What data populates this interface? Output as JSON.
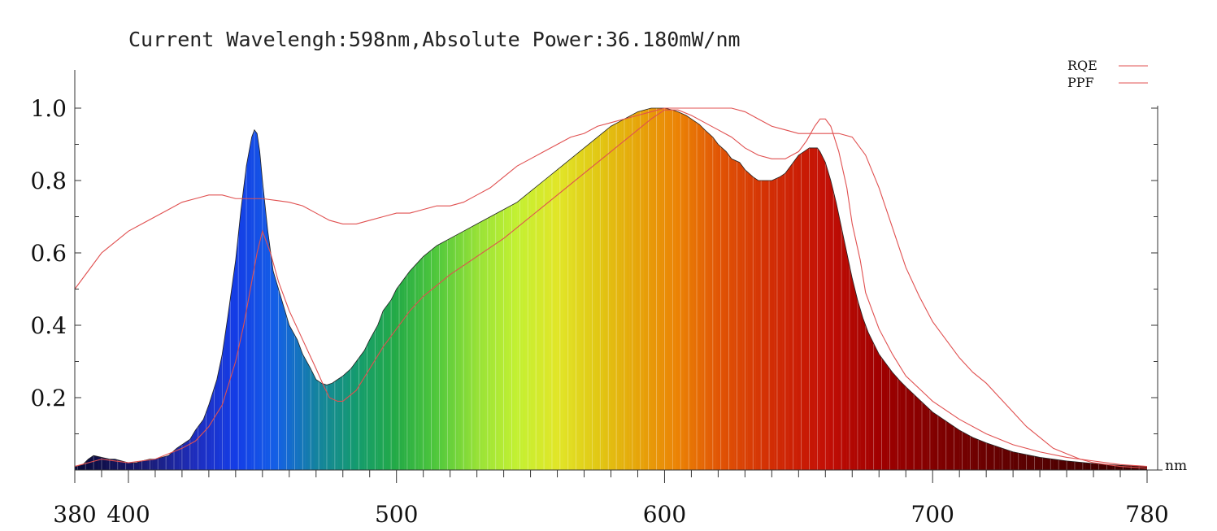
{
  "chart_data": {
    "type": "area",
    "title": "Current Wavelengh:598nm,Absolute Power:36.180mW/nm",
    "x_unit": "nm",
    "xlim": [
      380,
      780
    ],
    "ylim": [
      0,
      1.1
    ],
    "x_ticks": [
      380,
      400,
      500,
      600,
      700,
      780
    ],
    "y_ticks": [
      0.2,
      0.4,
      0.6,
      0.8,
      1.0
    ],
    "y_tick_labels": [
      "0.2",
      "0.4",
      "0.6",
      "0.8",
      "1.0"
    ],
    "grid": false,
    "legend_position": "top-right",
    "series": [
      {
        "name": "Spectrum",
        "style": "filled-spectrum",
        "x": [
          380,
          383,
          385,
          387,
          390,
          393,
          395,
          400,
          403,
          405,
          408,
          410,
          415,
          418,
          420,
          423,
          425,
          428,
          430,
          433,
          435,
          437,
          440,
          442,
          444,
          446,
          447,
          448,
          449,
          450,
          452,
          454,
          456,
          458,
          460,
          463,
          465,
          468,
          470,
          472,
          474,
          476,
          478,
          480,
          483,
          485,
          488,
          490,
          493,
          495,
          498,
          500,
          505,
          510,
          515,
          520,
          525,
          530,
          535,
          540,
          545,
          550,
          555,
          560,
          565,
          570,
          575,
          580,
          585,
          590,
          595,
          598,
          600,
          603,
          605,
          608,
          610,
          613,
          615,
          618,
          620,
          623,
          625,
          628,
          630,
          633,
          635,
          638,
          640,
          643,
          645,
          648,
          650,
          652,
          654,
          656,
          657,
          658,
          660,
          662,
          664,
          666,
          668,
          670,
          672,
          674,
          676,
          678,
          680,
          683,
          685,
          688,
          690,
          695,
          700,
          705,
          710,
          715,
          720,
          730,
          740,
          750,
          760,
          770,
          780
        ],
        "values": [
          0.01,
          0.015,
          0.03,
          0.04,
          0.035,
          0.03,
          0.03,
          0.02,
          0.02,
          0.025,
          0.03,
          0.03,
          0.04,
          0.06,
          0.07,
          0.085,
          0.11,
          0.14,
          0.18,
          0.25,
          0.32,
          0.42,
          0.58,
          0.72,
          0.84,
          0.92,
          0.94,
          0.93,
          0.88,
          0.8,
          0.66,
          0.55,
          0.5,
          0.45,
          0.4,
          0.36,
          0.32,
          0.28,
          0.25,
          0.24,
          0.235,
          0.24,
          0.25,
          0.26,
          0.28,
          0.3,
          0.33,
          0.36,
          0.4,
          0.44,
          0.47,
          0.5,
          0.55,
          0.59,
          0.62,
          0.64,
          0.66,
          0.68,
          0.7,
          0.72,
          0.74,
          0.77,
          0.8,
          0.83,
          0.86,
          0.89,
          0.92,
          0.95,
          0.97,
          0.99,
          1.0,
          1.0,
          1.0,
          0.995,
          0.99,
          0.98,
          0.97,
          0.955,
          0.94,
          0.92,
          0.9,
          0.88,
          0.86,
          0.85,
          0.83,
          0.81,
          0.8,
          0.8,
          0.8,
          0.81,
          0.82,
          0.85,
          0.87,
          0.88,
          0.89,
          0.89,
          0.89,
          0.88,
          0.85,
          0.8,
          0.74,
          0.67,
          0.6,
          0.53,
          0.47,
          0.42,
          0.38,
          0.35,
          0.32,
          0.29,
          0.27,
          0.245,
          0.23,
          0.195,
          0.16,
          0.135,
          0.11,
          0.09,
          0.075,
          0.05,
          0.035,
          0.025,
          0.018,
          0.013,
          0.01
        ]
      },
      {
        "name": "RQE",
        "style": "line",
        "color": "#e05050",
        "x": [
          380,
          385,
          390,
          395,
          400,
          405,
          410,
          415,
          420,
          425,
          430,
          435,
          440,
          445,
          450,
          455,
          460,
          465,
          470,
          475,
          480,
          485,
          490,
          495,
          500,
          505,
          510,
          515,
          520,
          525,
          530,
          535,
          540,
          545,
          550,
          555,
          560,
          565,
          570,
          575,
          580,
          585,
          590,
          595,
          600,
          605,
          610,
          615,
          620,
          625,
          630,
          635,
          640,
          645,
          650,
          655,
          660,
          665,
          670,
          675,
          680,
          685,
          690,
          695,
          700,
          705,
          710,
          715,
          720,
          725,
          730,
          735,
          740,
          745,
          750,
          755,
          760,
          770,
          780
        ],
        "values": [
          0.5,
          0.55,
          0.6,
          0.63,
          0.66,
          0.68,
          0.7,
          0.72,
          0.74,
          0.75,
          0.76,
          0.76,
          0.75,
          0.75,
          0.75,
          0.745,
          0.74,
          0.73,
          0.71,
          0.69,
          0.68,
          0.68,
          0.69,
          0.7,
          0.71,
          0.71,
          0.72,
          0.73,
          0.73,
          0.74,
          0.76,
          0.78,
          0.81,
          0.84,
          0.86,
          0.88,
          0.9,
          0.92,
          0.93,
          0.95,
          0.96,
          0.97,
          0.98,
          0.99,
          1.0,
          1.0,
          1.0,
          1.0,
          1.0,
          1.0,
          0.99,
          0.97,
          0.95,
          0.94,
          0.93,
          0.93,
          0.93,
          0.93,
          0.92,
          0.87,
          0.78,
          0.67,
          0.56,
          0.48,
          0.41,
          0.36,
          0.31,
          0.27,
          0.24,
          0.2,
          0.16,
          0.12,
          0.09,
          0.06,
          0.045,
          0.03,
          0.02,
          0.01,
          0.005
        ]
      },
      {
        "name": "PPF",
        "style": "line",
        "color": "#e05050",
        "x": [
          380,
          390,
          400,
          410,
          420,
          425,
          430,
          435,
          440,
          443,
          446,
          448,
          450,
          453,
          456,
          460,
          465,
          470,
          473,
          475,
          478,
          480,
          485,
          490,
          495,
          500,
          505,
          510,
          520,
          530,
          540,
          550,
          560,
          570,
          580,
          590,
          595,
          600,
          605,
          610,
          615,
          620,
          625,
          630,
          635,
          640,
          645,
          650,
          653,
          656,
          658,
          660,
          662,
          665,
          668,
          670,
          673,
          675,
          680,
          685,
          690,
          700,
          710,
          720,
          730,
          740,
          750,
          760,
          770,
          780
        ],
        "values": [
          0.01,
          0.03,
          0.02,
          0.03,
          0.06,
          0.08,
          0.12,
          0.18,
          0.3,
          0.4,
          0.52,
          0.6,
          0.66,
          0.6,
          0.52,
          0.44,
          0.36,
          0.28,
          0.23,
          0.2,
          0.19,
          0.19,
          0.22,
          0.28,
          0.34,
          0.39,
          0.44,
          0.48,
          0.54,
          0.59,
          0.64,
          0.7,
          0.76,
          0.82,
          0.88,
          0.94,
          0.97,
          0.995,
          0.995,
          0.98,
          0.96,
          0.94,
          0.92,
          0.89,
          0.87,
          0.86,
          0.86,
          0.88,
          0.91,
          0.95,
          0.97,
          0.97,
          0.95,
          0.88,
          0.78,
          0.68,
          0.58,
          0.49,
          0.39,
          0.32,
          0.26,
          0.19,
          0.14,
          0.1,
          0.07,
          0.05,
          0.035,
          0.025,
          0.015,
          0.01
        ]
      }
    ],
    "legend": [
      {
        "name": "RQE",
        "color": "#e05050"
      },
      {
        "name": "PPF",
        "color": "#e05050"
      }
    ]
  }
}
